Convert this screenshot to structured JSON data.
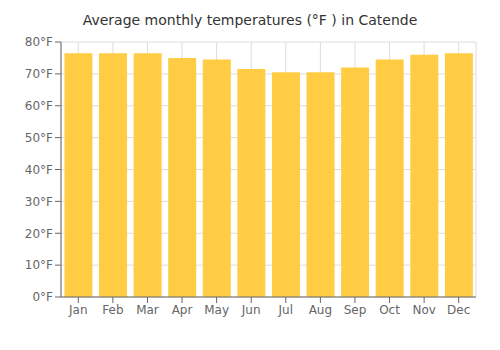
{
  "chart_data": {
    "type": "bar",
    "title": "Average monthly temperatures (°F ) in Catende",
    "categories": [
      "Jan",
      "Feb",
      "Mar",
      "Apr",
      "May",
      "Jun",
      "Jul",
      "Aug",
      "Sep",
      "Oct",
      "Nov",
      "Dec"
    ],
    "values": [
      76.5,
      76.5,
      76.5,
      75.0,
      74.5,
      71.5,
      70.5,
      70.5,
      72.0,
      74.5,
      76.0,
      76.5
    ],
    "color": "#FFCC44",
    "ylim": [
      0,
      80
    ],
    "yticks": [
      {
        "value": 0,
        "label": "0°F"
      },
      {
        "value": 10,
        "label": "10°F"
      },
      {
        "value": 20,
        "label": "20°F"
      },
      {
        "value": 30,
        "label": "30°F"
      },
      {
        "value": 40,
        "label": "40°F"
      },
      {
        "value": 50,
        "label": "50°F"
      },
      {
        "value": 60,
        "label": "60°F"
      },
      {
        "value": 70,
        "label": "70°F"
      },
      {
        "value": 80,
        "label": "80°F"
      }
    ],
    "grid": true
  }
}
